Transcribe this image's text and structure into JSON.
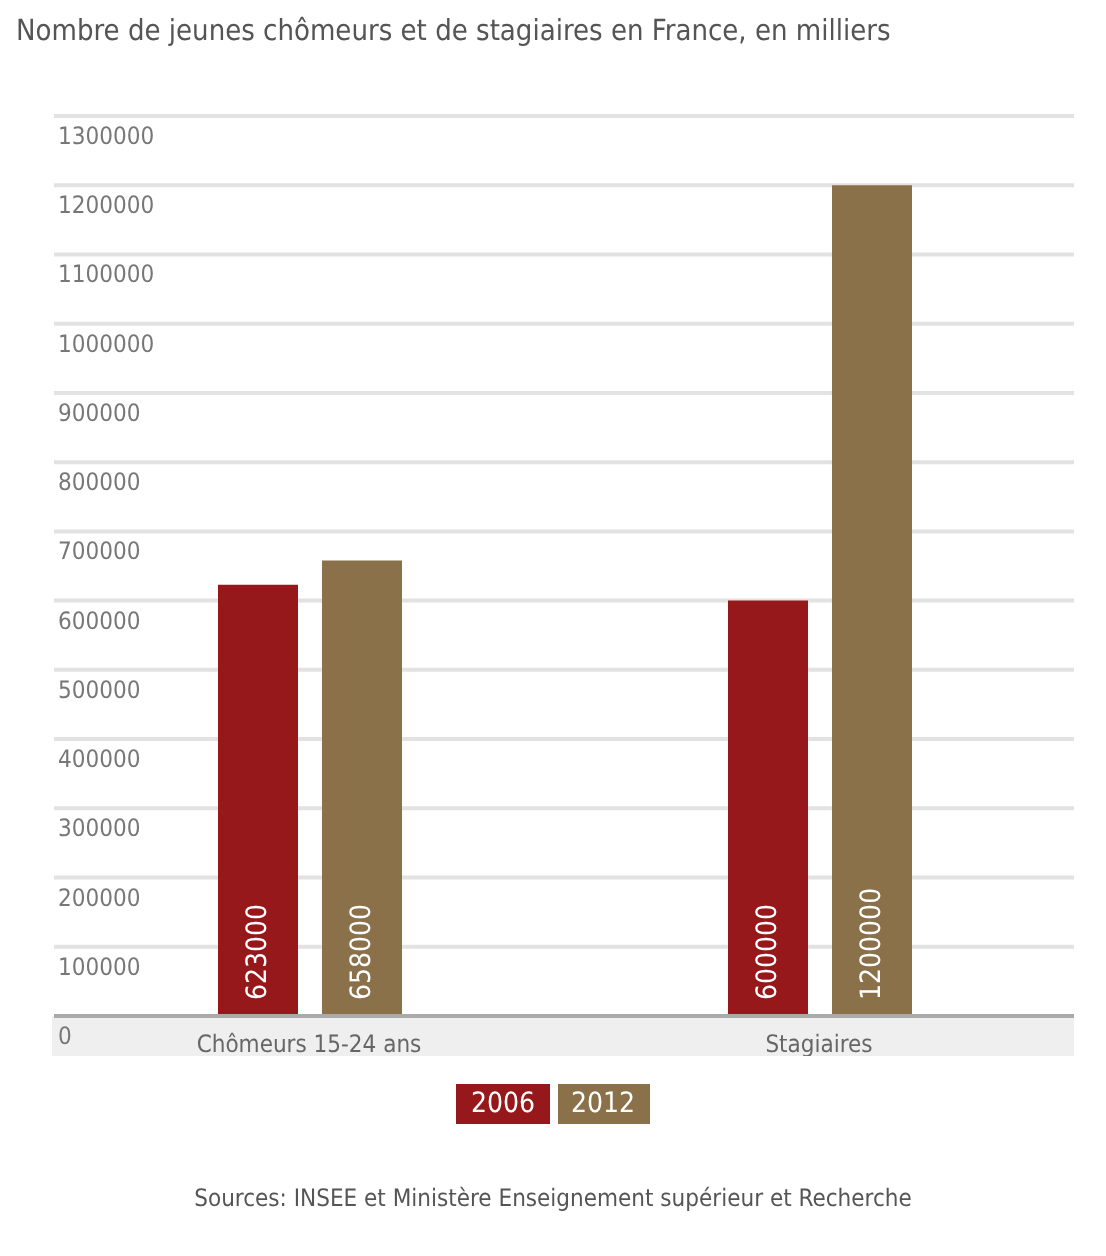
{
  "chart_data": {
    "type": "bar",
    "title": "Nombre de jeunes chômeurs et de stagiaires en France, en milliers",
    "categories": [
      "Chômeurs 15-24 ans",
      "Stagiaires"
    ],
    "series": [
      {
        "name": "2006",
        "color": "#97181b",
        "values": [
          623000,
          600000
        ]
      },
      {
        "name": "2012",
        "color": "#8a7149",
        "values": [
          658000,
          1200000
        ]
      }
    ],
    "ylim": [
      0,
      1300000
    ],
    "yticks": [
      0,
      100000,
      200000,
      300000,
      400000,
      500000,
      600000,
      700000,
      800000,
      900000,
      1000000,
      1100000,
      1200000,
      1300000
    ],
    "grid": "y",
    "legend": "bottom",
    "data_labels": true,
    "annotations": [
      "Sources: INSEE et Ministère Enseignement supérieur et Recherche"
    ]
  }
}
